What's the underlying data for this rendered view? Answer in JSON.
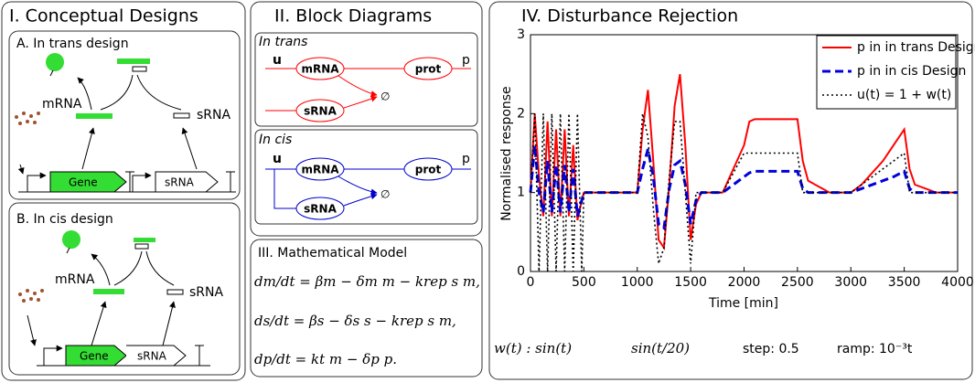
{
  "panel1": {
    "title": "I. Conceptual Designs",
    "a": {
      "title": "A. In trans design",
      "mrna": "mRNA",
      "srna": "sRNA",
      "gene": "Gene",
      "srna_gene": "sRNA"
    },
    "b": {
      "title": "B. In cis design",
      "mrna": "mRNA",
      "srna": "sRNA",
      "gene": "Gene",
      "srna_gene": "sRNA"
    }
  },
  "panel2": {
    "title": "II. Block Diagrams",
    "trans": {
      "title": "In trans",
      "u": "u",
      "p": "p",
      "mrna": "mRNA",
      "prot": "prot",
      "srna": "sRNA",
      "empty": "∅"
    },
    "cis": {
      "title": "In cis",
      "u": "u",
      "p": "p",
      "mrna": "mRNA",
      "prot": "prot",
      "srna": "sRNA",
      "empty": "∅"
    }
  },
  "panel3": {
    "title": "III. Mathematical Model",
    "equations": [
      "dm/dt = βm − δm m − krep s m,",
      "ds/dt = βs − δs s − krep s m,",
      "dp/dt = kt m − δp p."
    ]
  },
  "chart_data": {
    "type": "line",
    "title": "IV. Disturbance Rejection",
    "x_label": "Time [min]",
    "y_label": "Normalised response",
    "x": [
      0,
      40,
      80,
      120,
      160,
      200,
      240,
      280,
      320,
      360,
      400,
      440,
      480,
      500,
      600,
      800,
      1000,
      1050,
      1100,
      1150,
      1200,
      1250,
      1300,
      1350,
      1400,
      1450,
      1500,
      1550,
      1600,
      1800,
      2000,
      2050,
      2100,
      2300,
      2500,
      2550,
      2600,
      2800,
      3000,
      3100,
      3200,
      3300,
      3400,
      3500,
      3550,
      3600,
      3800,
      4000
    ],
    "series": [
      {
        "name": "p in in trans Design",
        "color": "#ff0000",
        "linestyle": "solid",
        "values": [
          1,
          2,
          1.2,
          0.7,
          1.9,
          0.7,
          1.8,
          0.7,
          1.8,
          0.7,
          1.6,
          0.65,
          0.9,
          1,
          1,
          1,
          1,
          1.8,
          2.3,
          1.4,
          0.4,
          0.3,
          1.1,
          2.1,
          2.5,
          1.6,
          0.4,
          0.85,
          1,
          1,
          1.6,
          1.9,
          1.93,
          1.93,
          1.93,
          1.4,
          1.15,
          1,
          1,
          1.1,
          1.25,
          1.4,
          1.6,
          1.8,
          1.3,
          1.1,
          1,
          1
        ]
      },
      {
        "name": "p in in cis Design",
        "color": "#0000dd",
        "linestyle": "dashed",
        "values": [
          1,
          1.6,
          1,
          0.75,
          1.4,
          0.75,
          1.35,
          0.75,
          1.35,
          0.75,
          1.3,
          0.7,
          0.9,
          1,
          1,
          1,
          1,
          1.3,
          1.55,
          1.2,
          0.6,
          0.55,
          1.05,
          1.35,
          1.4,
          1.1,
          0.6,
          0.9,
          1,
          1,
          1.2,
          1.25,
          1.27,
          1.27,
          1.27,
          1.05,
          1,
          1,
          1,
          1.05,
          1.1,
          1.15,
          1.2,
          1.27,
          1.05,
          1,
          1,
          1
        ]
      },
      {
        "name": "u(t) = 1 + w(t)",
        "color": "#000000",
        "linestyle": "dotted",
        "values": [
          1,
          2,
          0,
          2,
          0,
          2,
          0,
          2,
          0,
          2,
          0,
          2,
          0,
          1,
          1,
          1,
          1,
          2,
          1.7,
          0.8,
          0.1,
          0.3,
          1.2,
          1.9,
          1.9,
          1,
          0.1,
          1,
          1,
          1,
          1.5,
          1.5,
          1.5,
          1.5,
          1.5,
          1,
          1,
          1,
          1,
          1.1,
          1.2,
          1.3,
          1.4,
          1.5,
          1,
          1,
          1,
          1
        ]
      }
    ],
    "xlim": [
      0,
      4000
    ],
    "ylim": [
      0,
      3
    ],
    "xticks": [
      0,
      500,
      1000,
      1500,
      2000,
      2500,
      3000,
      3500,
      4000
    ],
    "yticks": [
      0,
      1,
      2,
      3
    ],
    "legend": "upper right",
    "annotations": [
      "w(t) : sin(t)",
      "sin(t/20)",
      "step: 0.5",
      "ramp: 10⁻³t"
    ]
  }
}
